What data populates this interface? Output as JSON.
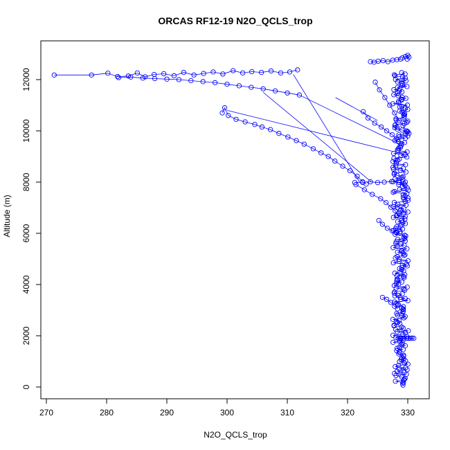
{
  "chart_data": {
    "type": "scatter",
    "title": "ORCAS RF12-19 N2O_QCLS_trop",
    "xlabel": "N2O_QCLS_trop",
    "ylabel": "Altitude (m)",
    "xlim": [
      270,
      330
    ],
    "ylim": [
      0,
      12000
    ],
    "x_ticks": [
      "270",
      "280",
      "290",
      "300",
      "310",
      "320",
      "330"
    ],
    "y_ticks": [
      "0",
      "2000",
      "4000",
      "6000",
      "8000",
      "10000",
      "12000"
    ],
    "marker": "open-circle",
    "connected_lines": true,
    "color": "#0000ff",
    "grid": false,
    "legend": "none",
    "series": [
      {
        "x": [
          271.3,
          277.5,
          280.2,
          281.8,
          283.6,
          285.1,
          286.4,
          287.9,
          289.5,
          291.2,
          292.8,
          294.5,
          296.1,
          297.7,
          299.3,
          301.0,
          302.6,
          304.1,
          305.7,
          307.3,
          308.9,
          310.4,
          311.7
        ],
        "y": [
          12180,
          12180,
          12250,
          12120,
          12140,
          12260,
          12110,
          12200,
          12230,
          12150,
          12280,
          12180,
          12240,
          12300,
          12220,
          12350,
          12260,
          12310,
          12280,
          12340,
          12260,
          12300,
          12380
        ]
      },
      {
        "x": [
          282.0,
          284.0,
          286.0,
          288.0,
          290.0,
          292.0,
          294.0,
          296.0,
          298.0,
          300.0,
          302.0,
          304.0,
          306.0,
          308.0,
          310.0,
          312.0
        ],
        "y": [
          12080,
          12100,
          12060,
          12040,
          12020,
          12000,
          11960,
          11920,
          11880,
          11820,
          11760,
          11700,
          11640,
          11560,
          11480,
          11400
        ]
      },
      {
        "x": [
          299.2,
          299.6,
          300.2,
          301.5,
          303.0,
          304.6,
          305.8,
          307.2,
          308.6,
          310.1,
          311.5,
          312.8,
          314.3,
          315.6,
          316.8,
          317.9,
          319.2,
          320.4,
          321.6,
          322.5,
          323.1
        ],
        "y": [
          10700,
          10900,
          10600,
          10450,
          10350,
          10250,
          10150,
          10050,
          9900,
          9760,
          9620,
          9480,
          9300,
          9140,
          9000,
          8820,
          8620,
          8440,
          8230,
          8010,
          7920
        ]
      },
      {
        "x": [
          321.4,
          322.8,
          324.1,
          325.5,
          326.4,
          327.2,
          327.9,
          328.3
        ],
        "y": [
          7900,
          7700,
          7520,
          7350,
          7200,
          7020,
          6880,
          6700
        ]
      },
      {
        "x": [
          323.8,
          324.4,
          325.1,
          325.9,
          326.7,
          327.5,
          328.2,
          328.8
        ],
        "y": [
          12700,
          12680,
          12720,
          12740,
          12700,
          12760,
          12780,
          12800
        ]
      },
      {
        "x": [
          324.6,
          325.3,
          326.2,
          327.0,
          327.8,
          328.6,
          329.2,
          329.8,
          330.2
        ],
        "y": [
          11900,
          11600,
          11300,
          11000,
          10700,
          10400,
          10200,
          10000,
          9900
        ]
      },
      {
        "x": [
          322.6,
          323.4,
          324.5,
          325.6,
          326.5,
          327.4,
          328.1
        ],
        "y": [
          10750,
          10500,
          10300,
          10150,
          10000,
          9850,
          9700
        ]
      },
      {
        "x": [
          321.2,
          322.5,
          323.8,
          325.0,
          326.1,
          327.3,
          328.5,
          329.6
        ],
        "y": [
          7980,
          7990,
          8010,
          7980,
          8000,
          8020,
          7990,
          8000
        ]
      },
      {
        "x": [
          325.2,
          325.8,
          326.6,
          327.4,
          328.0,
          328.7
        ],
        "y": [
          6500,
          6350,
          6200,
          6100,
          6050,
          6000
        ]
      },
      {
        "x": [
          325.8,
          326.5,
          327.2,
          327.8,
          328.3
        ],
        "y": [
          3500,
          3420,
          3300,
          3150,
          3050
        ]
      },
      {
        "x": [
          328.4,
          328.9,
          329.3,
          329.8,
          330.1,
          330.4,
          330.7,
          331.0
        ],
        "y": [
          1900,
          1900,
          1910,
          1900,
          1900,
          1900,
          1910,
          1900
        ]
      },
      {
        "x": [
          329.1,
          329.6,
          330.0,
          330.2,
          329.9
        ],
        "y": [
          12850,
          12900,
          12950,
          12880,
          12800
        ]
      }
    ],
    "column": {
      "x_center": 328.8,
      "x_spread": 1.3,
      "y_range": [
        80,
        12300
      ]
    }
  }
}
